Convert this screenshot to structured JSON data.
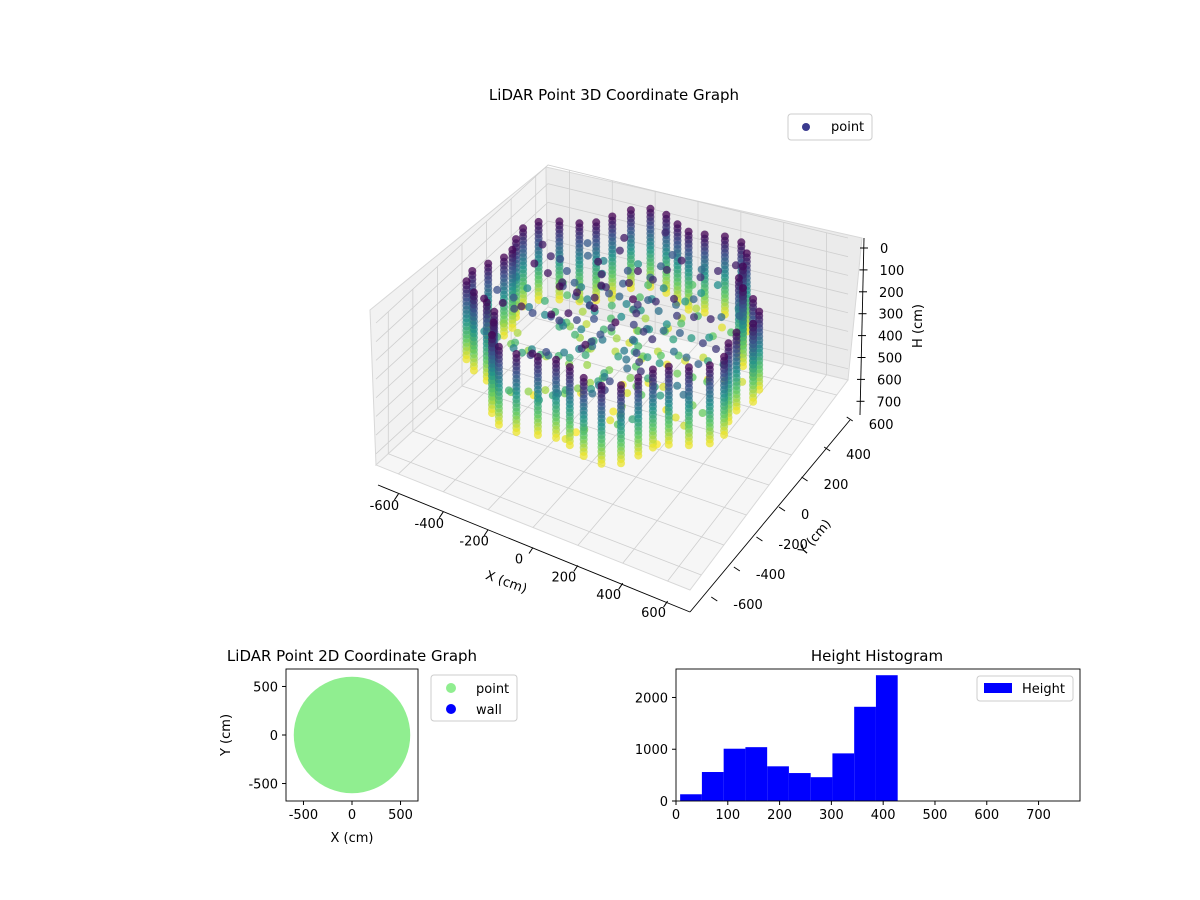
{
  "chart_data": [
    {
      "type": "scatter3d",
      "title": "LiDAR Point 3D Coordinate Graph",
      "xlabel": "X (cm)",
      "ylabel": "Y (cm)",
      "zlabel": "H (cm)",
      "xlim": [
        -700,
        700
      ],
      "ylim": [
        -700,
        700
      ],
      "zlim": [
        0,
        760
      ],
      "z_inverted": true,
      "xticks": [
        -600,
        -400,
        -200,
        0,
        200,
        400,
        600
      ],
      "yticks": [
        -600,
        -400,
        -200,
        0,
        200,
        400,
        600
      ],
      "zticks": [
        0,
        100,
        200,
        300,
        400,
        500,
        600,
        700
      ],
      "colormap": "viridis",
      "legend": {
        "position": "upper-right",
        "entries": [
          {
            "label": "point",
            "color": "#3b3b8f"
          }
        ]
      },
      "point_cloud": {
        "rings": 24,
        "radius_cm": 600,
        "height_range": [
          0,
          430
        ]
      }
    },
    {
      "type": "scatter",
      "title": "LiDAR Point 2D Coordinate Graph",
      "xlabel": "X (cm)",
      "ylabel": "Y (cm)",
      "xlim": [
        -680,
        680
      ],
      "ylim": [
        -680,
        680
      ],
      "xticks": [
        -500,
        0,
        500
      ],
      "yticks": [
        -500,
        0,
        500
      ],
      "legend": {
        "position": "outside-right",
        "entries": [
          {
            "label": "point",
            "color": "#90ee90"
          },
          {
            "label": "wall",
            "color": "#0000ff"
          }
        ]
      },
      "region": {
        "shape": "disc",
        "radius": 600,
        "center": [
          0,
          0
        ]
      }
    },
    {
      "type": "histogram",
      "title": "Height Histogram",
      "xlim": [
        0,
        780
      ],
      "ylim": [
        0,
        2550
      ],
      "xticks": [
        0,
        100,
        200,
        300,
        400,
        500,
        600,
        700
      ],
      "yticks": [
        0,
        1000,
        2000
      ],
      "color": "#0000ff",
      "bin_edges": [
        8,
        50,
        92,
        134,
        176,
        218,
        260,
        302,
        344,
        386,
        428
      ],
      "counts": [
        130,
        560,
        1010,
        1040,
        670,
        540,
        460,
        920,
        1820,
        2430
      ],
      "series": [
        {
          "name": "Height"
        }
      ],
      "legend": {
        "position": "upper-right",
        "entries": [
          {
            "label": "Height",
            "color": "#0000ff"
          }
        ]
      }
    }
  ]
}
